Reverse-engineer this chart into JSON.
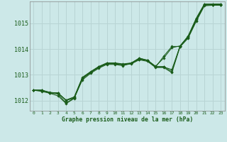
{
  "title": "Graphe pression niveau de la mer (hPa)",
  "bg_color": "#cce8e8",
  "line_color": "#1a5c1a",
  "grid_color": "#b8d4d4",
  "yticks": [
    1012,
    1013,
    1014,
    1015
  ],
  "ylim": [
    1011.6,
    1015.85
  ],
  "xlim": [
    -0.5,
    23.5
  ],
  "xticks": [
    0,
    1,
    2,
    3,
    4,
    5,
    6,
    7,
    8,
    9,
    10,
    11,
    12,
    13,
    14,
    15,
    16,
    17,
    18,
    19,
    20,
    21,
    22,
    23
  ],
  "series": [
    [
      1012.4,
      1012.4,
      1012.3,
      1012.25,
      1011.9,
      1012.1,
      1012.8,
      1013.05,
      1013.25,
      1013.4,
      1013.4,
      1013.35,
      1013.45,
      1013.6,
      1013.55,
      1013.3,
      1013.3,
      1013.2,
      1014.1,
      1014.45,
      1015.1,
      1015.7,
      1015.72,
      1015.72
    ],
    [
      1012.4,
      1012.35,
      1012.28,
      1012.18,
      1011.88,
      1012.08,
      1012.85,
      1013.08,
      1013.28,
      1013.42,
      1013.42,
      1013.38,
      1013.42,
      1013.58,
      1013.52,
      1013.28,
      1013.28,
      1013.08,
      1014.08,
      1014.42,
      1015.08,
      1015.68,
      1015.7,
      1015.7
    ],
    [
      1012.4,
      1012.38,
      1012.3,
      1012.28,
      1012.0,
      1012.12,
      1012.88,
      1013.1,
      1013.3,
      1013.44,
      1013.44,
      1013.4,
      1013.44,
      1013.62,
      1013.55,
      1013.32,
      1013.32,
      1013.12,
      1014.12,
      1014.48,
      1015.15,
      1015.72,
      1015.72,
      1015.72
    ],
    [
      1012.4,
      1012.4,
      1012.32,
      1012.28,
      1012.02,
      1012.14,
      1012.9,
      1013.12,
      1013.32,
      1013.46,
      1013.46,
      1013.42,
      1013.46,
      1013.64,
      1013.57,
      1013.33,
      1013.65,
      1014.05,
      1014.12,
      1014.5,
      1015.18,
      1015.74,
      1015.74,
      1015.74
    ],
    [
      1012.4,
      1012.4,
      1012.3,
      1012.3,
      1012.0,
      1012.1,
      1012.85,
      1013.1,
      1013.3,
      1013.45,
      1013.45,
      1013.4,
      1013.45,
      1013.65,
      1013.55,
      1013.3,
      1013.72,
      1014.1,
      1014.1,
      1014.5,
      1015.2,
      1015.75,
      1015.75,
      1015.75
    ]
  ]
}
